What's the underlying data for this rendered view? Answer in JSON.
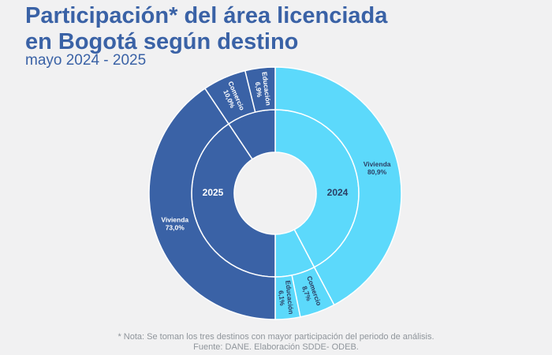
{
  "header": {
    "title_line1": "Participación* del área licenciada",
    "title_line2": "en Bogotá según destino",
    "subtitle": "mayo 2024 - 2025"
  },
  "footer": {
    "note": "* Nota: Se toman los tres destinos con mayor participación del periodo de análisis.",
    "source": "Fuente: DANE. Elaboración SDDE- ODEB."
  },
  "colors": {
    "series_2024": "#5cd9fb",
    "series_2025": "#3a62a6",
    "title": "#3a62a6",
    "separator": "#ffffff"
  },
  "chart_data": {
    "type": "pie",
    "variant": "nested-donut",
    "series": [
      {
        "name": "2024",
        "categories": [
          "Vivienda",
          "Comercio",
          "Educación"
        ],
        "labels": [
          "80,9%",
          "8,7%",
          "6,1%"
        ],
        "values": [
          80.9,
          8.7,
          6.1
        ]
      },
      {
        "name": "2025",
        "categories": [
          "Vivienda",
          "Comercio",
          "Educación"
        ],
        "labels": [
          "73,0%",
          "10,0%",
          "6,9%"
        ],
        "values": [
          73.0,
          10.0,
          6.9
        ]
      }
    ]
  }
}
